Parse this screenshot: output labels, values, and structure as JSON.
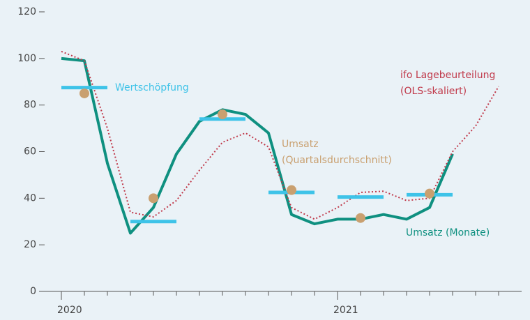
{
  "chart_data": {
    "type": "line",
    "categories": [
      "2020",
      null,
      null,
      null,
      null,
      null,
      null,
      null,
      null,
      null,
      null,
      null,
      "2021",
      null,
      null,
      null,
      null,
      null,
      null,
      null
    ],
    "ylim": [
      0,
      120
    ],
    "yticks": [
      0,
      20,
      40,
      60,
      80,
      100,
      120
    ],
    "series": [
      {
        "name": "Umsatz (Monate)",
        "kind": "line",
        "color": "#0f9080",
        "values": [
          100,
          99,
          55,
          25,
          36,
          59,
          73,
          78,
          76,
          68,
          33,
          29,
          31,
          31,
          33,
          31,
          36,
          59,
          null,
          null
        ]
      },
      {
        "name": [
          "ifo Lagebeurteilung",
          "(OLS-skaliert)"
        ],
        "kind": "dotted",
        "color": "#c0394a",
        "values": [
          103,
          99,
          70,
          34,
          32,
          39,
          52,
          64,
          68,
          62,
          36,
          31,
          36,
          42.5,
          43,
          39,
          40,
          60,
          71,
          88
        ]
      },
      {
        "name": "Wertschöpfung",
        "kind": "quarter",
        "color": "#3ec3e8",
        "values": [
          null,
          87.5,
          null,
          null,
          30,
          null,
          null,
          74,
          null,
          null,
          42.5,
          null,
          null,
          40.5,
          null,
          null,
          41.5,
          null,
          null,
          null
        ]
      },
      {
        "name": [
          "Umsatz",
          "(Quartalsdurchschnitt)"
        ],
        "kind": "dot",
        "color": "#c9a070",
        "values": [
          null,
          85,
          null,
          null,
          40,
          null,
          null,
          76,
          null,
          null,
          43.5,
          null,
          null,
          31.5,
          null,
          null,
          42,
          null,
          null,
          null
        ]
      }
    ]
  }
}
